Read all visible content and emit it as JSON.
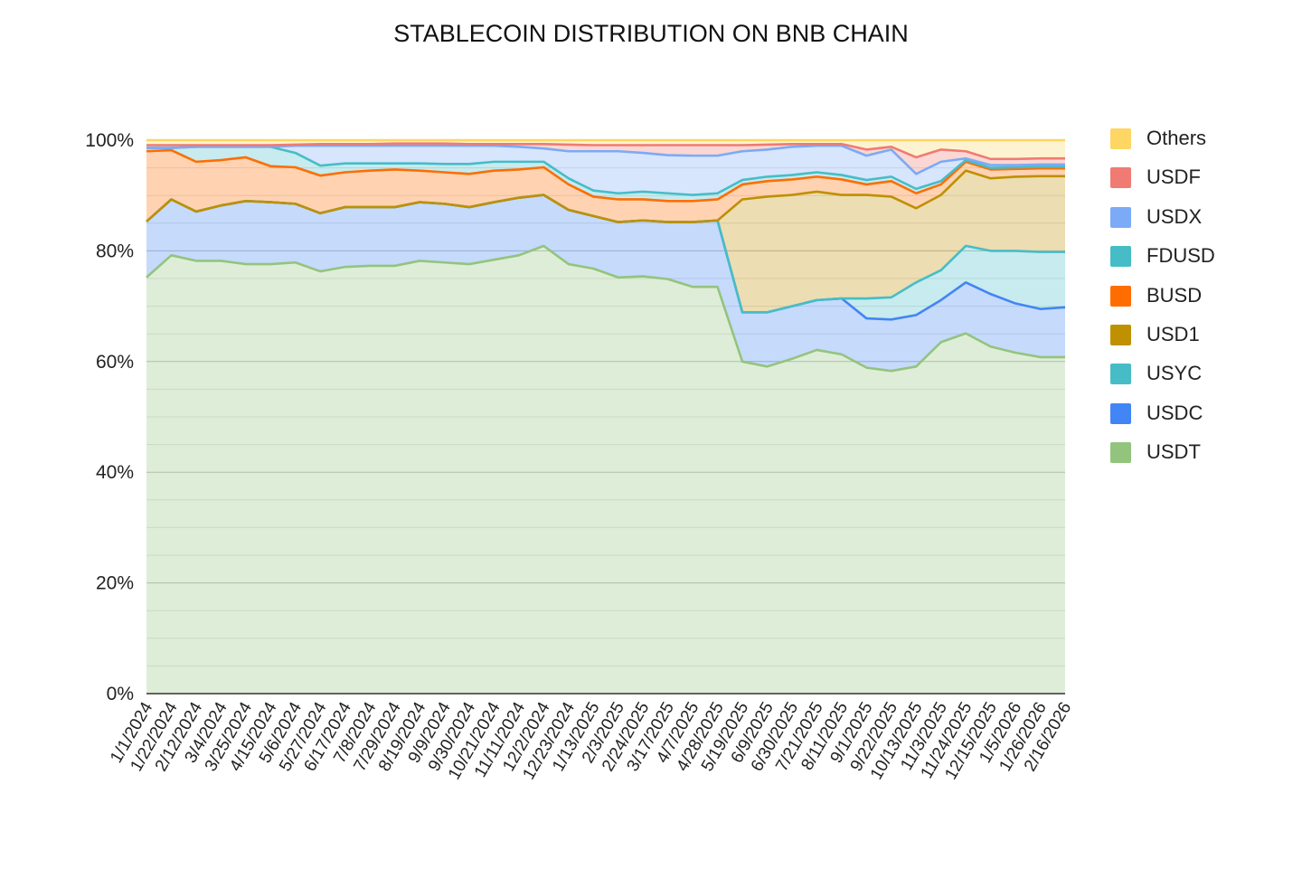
{
  "chart_data": {
    "type": "area",
    "stacked": "percent",
    "title": "STABLECOIN DISTRIBUTION ON BNB CHAIN",
    "xlabel": "",
    "ylabel": "",
    "ylim": [
      0,
      100
    ],
    "y_ticks": [
      "0%",
      "20%",
      "40%",
      "60%",
      "80%",
      "100%"
    ],
    "grid": true,
    "legend_position": "right",
    "categories": [
      "1/1/2024",
      "1/22/2024",
      "2/12/2024",
      "3/4/2024",
      "3/25/2024",
      "4/15/2024",
      "5/6/2024",
      "5/27/2024",
      "6/17/2024",
      "7/8/2024",
      "7/29/2024",
      "8/19/2024",
      "9/9/2024",
      "9/30/2024",
      "10/21/2024",
      "11/11/2024",
      "12/2/2024",
      "12/23/2024",
      "1/13/2025",
      "2/3/2025",
      "2/24/2025",
      "3/17/2025",
      "4/7/2025",
      "4/28/2025",
      "5/19/2025",
      "6/9/2025",
      "6/30/2025",
      "7/21/2025",
      "8/11/2025",
      "9/1/2025",
      "9/22/2025",
      "10/13/2025",
      "11/3/2025",
      "11/24/2025",
      "12/15/2025",
      "1/5/2026",
      "1/26/2026",
      "2/16/2026"
    ],
    "series": [
      {
        "name": "USDT",
        "color": "#93c47d",
        "values": [
          75.2,
          79.2,
          78.2,
          78.2,
          77.6,
          77.6,
          77.9,
          76.3,
          77.1,
          77.3,
          77.3,
          78.2,
          77.9,
          77.6,
          78.4,
          79.2,
          80.9,
          77.6,
          76.8,
          75.2,
          75.4,
          74.9,
          73.5,
          73.5,
          60.0,
          59.1,
          60.5,
          62.1,
          61.3,
          58.9,
          58.3,
          59.1,
          63.5,
          65.1,
          62.7,
          61.6,
          60.8,
          60.8
        ]
      },
      {
        "name": "USDC",
        "color": "#4285f4",
        "values": [
          10.1,
          10.1,
          8.9,
          10.0,
          11.4,
          11.2,
          10.6,
          10.5,
          10.8,
          10.6,
          10.6,
          10.6,
          10.6,
          10.3,
          10.4,
          10.4,
          9.2,
          9.8,
          9.5,
          10.0,
          10.1,
          10.3,
          11.7,
          12.0,
          8.9,
          9.8,
          9.5,
          9.0,
          10.1,
          8.9,
          9.3,
          9.3,
          7.6,
          9.2,
          9.5,
          8.9,
          8.7,
          9.0
        ]
      },
      {
        "name": "USYC",
        "color": "#46bdc6",
        "values": [
          0,
          0,
          0,
          0,
          0,
          0,
          0,
          0,
          0,
          0,
          0,
          0,
          0,
          0,
          0,
          0,
          0,
          0,
          0,
          0,
          0,
          0,
          0,
          0,
          0,
          0,
          0,
          0,
          0,
          3.6,
          4.0,
          5.9,
          5.4,
          6.6,
          7.8,
          9.5,
          10.3,
          10.0
        ]
      },
      {
        "name": "USD1",
        "color": "#bf9000",
        "values": [
          0,
          0,
          0,
          0,
          0,
          0,
          0,
          0,
          0,
          0,
          0,
          0,
          0,
          0,
          0,
          0,
          0,
          0,
          0,
          0,
          0,
          0,
          0,
          0,
          20.4,
          20.9,
          20.1,
          19.6,
          18.7,
          18.7,
          18.2,
          13.4,
          13.6,
          13.6,
          13.1,
          13.4,
          13.7,
          13.7
        ]
      },
      {
        "name": "BUSD",
        "color": "#ff6d01",
        "values": [
          12.7,
          8.9,
          9.0,
          8.2,
          7.9,
          6.5,
          6.6,
          6.8,
          6.3,
          6.6,
          6.8,
          5.7,
          5.7,
          6.0,
          5.7,
          5.1,
          5.0,
          4.6,
          3.5,
          4.1,
          3.8,
          3.8,
          3.8,
          3.8,
          2.7,
          2.8,
          2.8,
          2.7,
          2.8,
          1.9,
          2.8,
          2.7,
          1.9,
          1.6,
          1.6,
          1.4,
          1.4,
          1.4
        ]
      },
      {
        "name": "FDUSD",
        "color": "#46bdc6",
        "values": [
          0.6,
          0.4,
          2.7,
          2.4,
          1.9,
          3.5,
          2.6,
          1.8,
          1.6,
          1.3,
          1.1,
          1.3,
          1.5,
          1.8,
          1.6,
          1.4,
          1.0,
          1.1,
          1.1,
          1.1,
          1.4,
          1.4,
          1.1,
          1.1,
          0.8,
          0.8,
          0.8,
          0.8,
          0.8,
          0.8,
          0.8,
          0.8,
          0.6,
          0.3,
          0.3,
          0.3,
          0.3,
          0.3
        ]
      },
      {
        "name": "USDX",
        "color": "#7baaf7",
        "values": [
          0,
          0,
          0,
          0,
          0,
          0,
          1.3,
          3.6,
          3.2,
          3.2,
          3.2,
          3.2,
          3.3,
          3.3,
          2.9,
          2.7,
          2.4,
          4.9,
          7.1,
          7.6,
          7.0,
          6.9,
          7.1,
          6.8,
          5.2,
          4.9,
          5.1,
          4.8,
          5.3,
          4.4,
          4.9,
          2.7,
          3.5,
          0.3,
          0.5,
          0.4,
          0.4,
          0.4
        ]
      },
      {
        "name": "USDF",
        "color": "#f07b72",
        "values": [
          0.5,
          0.5,
          0.3,
          0.3,
          0.3,
          0.3,
          0.2,
          0.3,
          0.3,
          0.3,
          0.4,
          0.4,
          0.4,
          0.3,
          0.3,
          0.5,
          0.8,
          1.2,
          1.1,
          1.1,
          1.4,
          1.8,
          1.9,
          1.9,
          1.1,
          0.9,
          0.5,
          0.3,
          0.3,
          1.1,
          0.5,
          3.0,
          2.2,
          1.3,
          1.1,
          1.1,
          1.1,
          1.1
        ]
      },
      {
        "name": "Others",
        "color": "#fdd663",
        "values": [
          0.9,
          0.9,
          0.9,
          0.9,
          0.9,
          0.9,
          0.8,
          0.7,
          0.7,
          0.7,
          0.6,
          0.6,
          0.6,
          0.7,
          0.7,
          0.7,
          0.7,
          0.8,
          0.9,
          0.9,
          0.9,
          0.9,
          0.9,
          0.9,
          0.9,
          0.8,
          0.7,
          0.7,
          0.7,
          1.7,
          1.2,
          3.1,
          1.7,
          2.0,
          3.4,
          3.4,
          3.3,
          3.3
        ]
      }
    ],
    "legend_order": [
      "Others",
      "USDF",
      "USDX",
      "FDUSD",
      "BUSD",
      "USD1",
      "USYC",
      "USDC",
      "USDT"
    ]
  }
}
